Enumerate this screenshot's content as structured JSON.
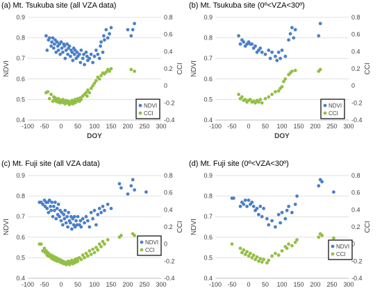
{
  "colors": {
    "ndvi": "#4a7fc8",
    "cci": "#93bf45",
    "grid": "#d9d9d9",
    "axis": "#bfbfbf"
  },
  "chart_data": [
    {
      "type": "scatter",
      "title": "(a) Mt. Tsukuba site (all VZA data)",
      "xlabel": "DOY",
      "ylabel": "NDVI",
      "y2label": "CCI",
      "xlim": [
        -100,
        300
      ],
      "ylim": [
        0.4,
        0.9
      ],
      "y2lim": [
        -0.4,
        0.8
      ],
      "xticks": [
        "-100",
        "-50",
        "0",
        "50",
        "100",
        "150",
        "200",
        "250",
        "300"
      ],
      "yticks": [
        "0.4",
        "0.5",
        "0.6",
        "0.7",
        "0.8",
        "0.9"
      ],
      "y2ticks": [
        "-0.4",
        "-0.2",
        "0",
        "0.2",
        "0.4",
        "0.6",
        "0.8"
      ],
      "grid": "horizontal",
      "legend": "bottom-right",
      "series": [
        {
          "name": "NDVI",
          "axis": "left",
          "x": [
            -45,
            -42,
            -38,
            -35,
            -30,
            -28,
            -25,
            -22,
            -20,
            -18,
            -15,
            -12,
            -10,
            -8,
            -5,
            -3,
            0,
            2,
            5,
            8,
            10,
            12,
            15,
            18,
            20,
            22,
            25,
            28,
            30,
            33,
            35,
            38,
            40,
            42,
            45,
            48,
            50,
            55,
            58,
            60,
            65,
            68,
            70,
            75,
            78,
            80,
            85,
            90,
            95,
            100,
            105,
            110,
            115,
            118,
            120,
            125,
            128,
            130,
            135,
            140,
            145,
            150,
            200,
            210,
            215,
            220
          ],
          "y": [
            0.81,
            0.74,
            0.79,
            0.8,
            0.76,
            0.78,
            0.8,
            0.75,
            0.77,
            0.79,
            0.73,
            0.78,
            0.76,
            0.74,
            0.77,
            0.72,
            0.78,
            0.75,
            0.73,
            0.77,
            0.76,
            0.7,
            0.74,
            0.77,
            0.72,
            0.75,
            0.76,
            0.71,
            0.74,
            0.73,
            0.69,
            0.75,
            0.72,
            0.74,
            0.7,
            0.73,
            0.71,
            0.72,
            0.68,
            0.74,
            0.7,
            0.72,
            0.67,
            0.73,
            0.71,
            0.69,
            0.7,
            0.72,
            0.68,
            0.71,
            0.74,
            0.72,
            0.7,
            0.76,
            0.78,
            0.73,
            0.81,
            0.79,
            0.84,
            0.8,
            0.82,
            0.85,
            0.84,
            0.81,
            0.84,
            0.87
          ]
        },
        {
          "name": "CCI",
          "axis": "right",
          "x": [
            -45,
            -40,
            -35,
            -30,
            -25,
            -22,
            -20,
            -18,
            -15,
            -12,
            -10,
            -8,
            -5,
            -3,
            0,
            2,
            5,
            8,
            10,
            12,
            15,
            18,
            20,
            22,
            25,
            28,
            30,
            33,
            35,
            38,
            40,
            42,
            45,
            48,
            50,
            55,
            58,
            60,
            65,
            70,
            75,
            78,
            80,
            85,
            90,
            95,
            100,
            105,
            110,
            115,
            120,
            125,
            130,
            135,
            140,
            145,
            150,
            210,
            220
          ],
          "y": [
            -0.08,
            -0.07,
            -0.15,
            -0.1,
            -0.18,
            -0.13,
            -0.16,
            -0.14,
            -0.18,
            -0.16,
            -0.19,
            -0.15,
            -0.18,
            -0.2,
            -0.17,
            -0.19,
            -0.16,
            -0.2,
            -0.18,
            -0.21,
            -0.17,
            -0.19,
            -0.2,
            -0.18,
            -0.22,
            -0.19,
            -0.2,
            -0.17,
            -0.21,
            -0.18,
            -0.2,
            -0.16,
            -0.19,
            -0.17,
            -0.15,
            -0.18,
            -0.14,
            -0.16,
            -0.12,
            -0.1,
            -0.08,
            -0.12,
            -0.05,
            -0.08,
            -0.03,
            0.0,
            0.03,
            0.06,
            0.1,
            0.08,
            0.12,
            0.15,
            0.14,
            0.16,
            0.19,
            0.17,
            0.2,
            0.19,
            0.17
          ]
        }
      ]
    },
    {
      "type": "scatter",
      "title": "(b) Mt. Tsukuba site (0º<VZA<30º)",
      "xlabel": "DOY",
      "ylabel": "NDVI",
      "y2label": "CCI",
      "xlim": [
        -100,
        300
      ],
      "ylim": [
        0.4,
        0.9
      ],
      "y2lim": [
        -0.4,
        0.8
      ],
      "xticks": [
        "-100",
        "-50",
        "0",
        "50",
        "100",
        "150",
        "200",
        "250",
        "300"
      ],
      "yticks": [
        "0.4",
        "0.5",
        "0.6",
        "0.7",
        "0.8",
        "0.9"
      ],
      "y2ticks": [
        "-0.4",
        "-0.2",
        "0",
        "0.2",
        "0.4",
        "0.6",
        "0.8"
      ],
      "grid": "horizontal",
      "legend": "bottom-right",
      "series": [
        {
          "name": "NDVI",
          "axis": "left",
          "x": [
            -30,
            -25,
            -20,
            -15,
            -10,
            -5,
            0,
            5,
            10,
            15,
            20,
            25,
            30,
            35,
            40,
            50,
            60,
            65,
            70,
            80,
            85,
            90,
            95,
            100,
            110,
            120,
            125,
            130,
            135,
            140,
            210,
            215
          ],
          "y": [
            0.81,
            0.77,
            0.79,
            0.78,
            0.76,
            0.77,
            0.78,
            0.77,
            0.77,
            0.75,
            0.76,
            0.73,
            0.74,
            0.75,
            0.73,
            0.72,
            0.74,
            0.7,
            0.73,
            0.71,
            0.69,
            0.73,
            0.7,
            0.74,
            0.71,
            0.79,
            0.82,
            0.85,
            0.8,
            0.84,
            0.81,
            0.87
          ]
        },
        {
          "name": "CCI",
          "axis": "right",
          "x": [
            -30,
            -25,
            -20,
            -15,
            -10,
            -5,
            0,
            5,
            10,
            15,
            20,
            25,
            30,
            35,
            40,
            50,
            60,
            70,
            80,
            90,
            95,
            100,
            105,
            110,
            120,
            125,
            130,
            140,
            210,
            215
          ],
          "y": [
            -0.1,
            -0.15,
            -0.13,
            -0.17,
            -0.16,
            -0.19,
            -0.17,
            -0.16,
            -0.19,
            -0.18,
            -0.2,
            -0.17,
            -0.19,
            -0.16,
            -0.2,
            -0.15,
            -0.13,
            -0.1,
            -0.07,
            -0.06,
            -0.03,
            -0.01,
            0.05,
            0.08,
            0.13,
            0.15,
            0.17,
            0.18,
            0.17,
            0.19
          ]
        }
      ]
    },
    {
      "type": "scatter",
      "title": "(c) Mt. Fuji site (all VZA data)",
      "xlabel": "DOY",
      "ylabel": "NDVI",
      "y2label": "CCI",
      "xlim": [
        -100,
        300
      ],
      "ylim": [
        0.4,
        0.9
      ],
      "y2lim": [
        -0.4,
        0.8
      ],
      "xticks": [
        "-100",
        "-50",
        "0",
        "50",
        "100",
        "150",
        "200",
        "250",
        "300"
      ],
      "yticks": [
        "0.4",
        "0.5",
        "0.6",
        "0.7",
        "0.8",
        "0.9"
      ],
      "y2ticks": [
        "-0.4",
        "-0.2",
        "0",
        "0.2",
        "0.4",
        "0.6",
        "0.8"
      ],
      "grid": "horizontal",
      "legend": "bottom-right",
      "series": [
        {
          "name": "NDVI",
          "axis": "left",
          "x": [
            -65,
            -60,
            -55,
            -50,
            -48,
            -45,
            -42,
            -40,
            -38,
            -35,
            -32,
            -30,
            -28,
            -25,
            -22,
            -20,
            -18,
            -15,
            -12,
            -10,
            -8,
            -5,
            -3,
            0,
            2,
            5,
            8,
            10,
            12,
            15,
            18,
            20,
            22,
            25,
            28,
            30,
            32,
            35,
            38,
            40,
            42,
            45,
            48,
            50,
            55,
            58,
            60,
            65,
            70,
            75,
            80,
            85,
            90,
            95,
            100,
            105,
            110,
            115,
            120,
            125,
            130,
            140,
            150,
            175,
            180,
            200,
            210,
            215,
            220,
            255
          ],
          "y": [
            0.77,
            0.77,
            0.76,
            0.78,
            0.75,
            0.77,
            0.74,
            0.77,
            0.72,
            0.78,
            0.75,
            0.73,
            0.77,
            0.7,
            0.75,
            0.73,
            0.77,
            0.69,
            0.74,
            0.71,
            0.76,
            0.7,
            0.73,
            0.68,
            0.72,
            0.66,
            0.71,
            0.69,
            0.73,
            0.67,
            0.7,
            0.65,
            0.72,
            0.68,
            0.67,
            0.7,
            0.64,
            0.69,
            0.66,
            0.7,
            0.65,
            0.68,
            0.66,
            0.7,
            0.66,
            0.68,
            0.65,
            0.69,
            0.67,
            0.7,
            0.68,
            0.65,
            0.72,
            0.69,
            0.73,
            0.66,
            0.71,
            0.74,
            0.72,
            0.75,
            0.73,
            0.76,
            0.74,
            0.86,
            0.84,
            0.81,
            0.85,
            0.88,
            0.83,
            0.82
          ]
        },
        {
          "name": "CCI",
          "axis": "right",
          "x": [
            -65,
            -60,
            -55,
            -50,
            -48,
            -45,
            -42,
            -40,
            -38,
            -35,
            -32,
            -30,
            -28,
            -25,
            -22,
            -20,
            -18,
            -15,
            -12,
            -10,
            -8,
            -5,
            -3,
            0,
            2,
            5,
            8,
            10,
            12,
            15,
            18,
            20,
            22,
            25,
            28,
            30,
            32,
            35,
            38,
            40,
            42,
            45,
            48,
            50,
            55,
            60,
            65,
            70,
            75,
            80,
            85,
            90,
            95,
            100,
            105,
            110,
            115,
            120,
            125,
            130,
            140,
            175,
            180,
            215,
            220,
            255
          ],
          "y": [
            0.0,
            0.0,
            -0.08,
            -0.05,
            -0.1,
            -0.08,
            -0.13,
            -0.1,
            -0.14,
            -0.12,
            -0.15,
            -0.13,
            -0.17,
            -0.14,
            -0.18,
            -0.15,
            -0.19,
            -0.16,
            -0.2,
            -0.17,
            -0.2,
            -0.18,
            -0.21,
            -0.19,
            -0.22,
            -0.2,
            -0.23,
            -0.21,
            -0.22,
            -0.24,
            -0.21,
            -0.23,
            -0.2,
            -0.24,
            -0.21,
            -0.22,
            -0.19,
            -0.23,
            -0.2,
            -0.22,
            -0.18,
            -0.21,
            -0.17,
            -0.2,
            -0.16,
            -0.18,
            -0.13,
            -0.16,
            -0.11,
            -0.14,
            -0.08,
            -0.12,
            -0.06,
            -0.1,
            -0.04,
            -0.07,
            0.0,
            -0.03,
            0.03,
            0.0,
            0.05,
            0.08,
            0.1,
            0.12,
            0.1,
            0.06
          ]
        }
      ]
    },
    {
      "type": "scatter",
      "title": "(d) Mt. Fuji site (0º<VZA<30º)",
      "xlabel": "DOY",
      "ylabel": "NDVI",
      "y2label": "CCI",
      "xlim": [
        -100,
        300
      ],
      "ylim": [
        0.4,
        0.9
      ],
      "y2lim": [
        -0.4,
        0.8
      ],
      "xticks": [
        "-100",
        "-50",
        "0",
        "50",
        "100",
        "150",
        "200",
        "250",
        "300"
      ],
      "yticks": [
        "0.4",
        "0.5",
        "0.6",
        "0.7",
        "0.8",
        "0.9"
      ],
      "y2ticks": [
        "-0.4",
        "-0.2",
        "0",
        "0.2",
        "0.4",
        "0.6",
        "0.8"
      ],
      "grid": "horizontal",
      "legend": "bottom-right",
      "series": [
        {
          "name": "NDVI",
          "axis": "left",
          "x": [
            -50,
            -45,
            -25,
            -20,
            -15,
            -10,
            -5,
            0,
            5,
            10,
            15,
            20,
            25,
            30,
            35,
            40,
            45,
            55,
            60,
            70,
            80,
            90,
            95,
            100,
            110,
            115,
            120,
            130,
            140,
            145,
            210,
            215,
            220,
            255
          ],
          "y": [
            0.79,
            0.79,
            0.75,
            0.77,
            0.76,
            0.78,
            0.75,
            0.78,
            0.76,
            0.77,
            0.75,
            0.73,
            0.74,
            0.71,
            0.75,
            0.7,
            0.74,
            0.69,
            0.66,
            0.68,
            0.65,
            0.71,
            0.67,
            0.72,
            0.69,
            0.73,
            0.75,
            0.72,
            0.76,
            0.8,
            0.85,
            0.88,
            0.87,
            0.82
          ]
        },
        {
          "name": "CCI",
          "axis": "right",
          "x": [
            -50,
            -25,
            -20,
            -15,
            -10,
            -5,
            0,
            5,
            10,
            15,
            20,
            25,
            30,
            35,
            40,
            45,
            55,
            60,
            70,
            80,
            90,
            100,
            110,
            115,
            120,
            130,
            140,
            145,
            210,
            215,
            220,
            255
          ],
          "y": [
            0.0,
            -0.05,
            -0.1,
            -0.07,
            -0.12,
            -0.09,
            -0.14,
            -0.11,
            -0.16,
            -0.13,
            -0.18,
            -0.15,
            -0.2,
            -0.17,
            -0.21,
            -0.18,
            -0.22,
            -0.19,
            -0.14,
            -0.11,
            -0.13,
            -0.08,
            -0.03,
            -0.05,
            0.0,
            -0.02,
            0.02,
            0.05,
            0.08,
            0.12,
            0.1,
            0.07
          ]
        }
      ]
    }
  ]
}
